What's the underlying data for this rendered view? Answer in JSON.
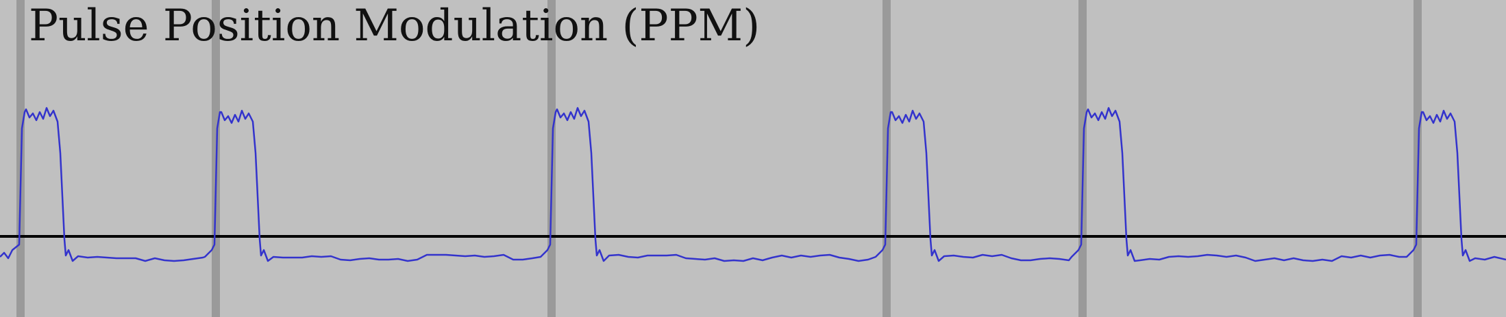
{
  "title": "Pulse Position Modulation (PPM)",
  "colors": {
    "background": "#c0c0c0",
    "marker": "#9a9a9a",
    "baseline": "#000000",
    "signal": "#3333cc",
    "title": "#111111"
  },
  "signal": {
    "pulse_count": 6,
    "pulse_shape": "rectangular with rippled top and undershoot after each pulse",
    "timing_markers": "vertical grey line at each pulse's rising edge"
  }
}
